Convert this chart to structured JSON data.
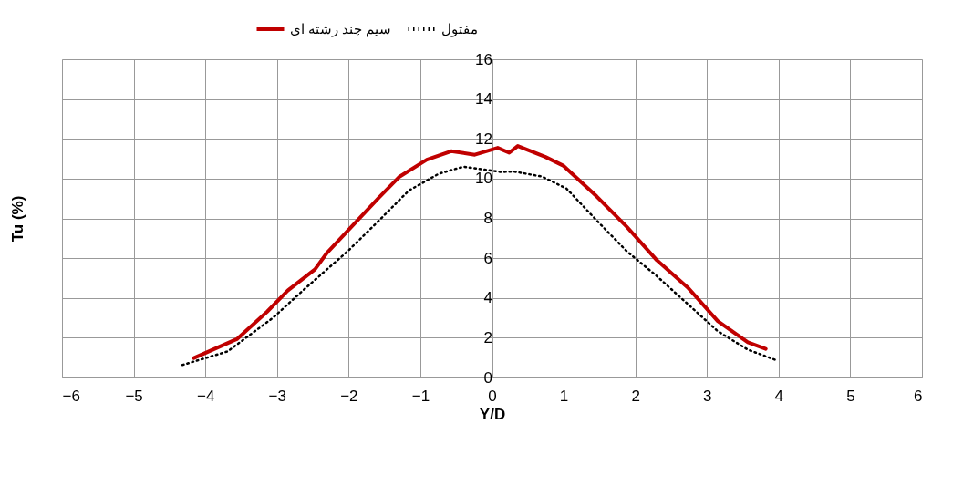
{
  "chart_data": {
    "type": "line",
    "xlabel": "Y/D",
    "ylabel": "Tu (%)",
    "xlim": [
      -6,
      6
    ],
    "xticks": [
      -6,
      -5,
      -4,
      -3,
      -2,
      -1,
      0,
      1,
      2,
      3,
      4,
      5,
      6
    ],
    "ylim": [
      0,
      16
    ],
    "yticks": [
      0,
      2,
      4,
      6,
      8,
      10,
      12,
      14,
      16
    ],
    "grid": true,
    "legend": "top",
    "marker": "none",
    "series": [
      {
        "name": "سیم چند رشته ای",
        "color": "#c00000",
        "line_style": "solid",
        "x": [
          -4.16,
          -3.56,
          -3.14,
          -2.85,
          -2.47,
          -2.3,
          -1.96,
          -1.58,
          -1.29,
          -0.91,
          -0.57,
          -0.24,
          0.08,
          0.24,
          0.36,
          0.74,
          1.0,
          1.46,
          1.88,
          2.3,
          2.73,
          3.15,
          3.57,
          3.82
        ],
        "values": [
          0.98,
          1.93,
          3.3,
          4.37,
          5.44,
          6.28,
          7.58,
          9.04,
          10.1,
          10.95,
          11.38,
          11.2,
          11.55,
          11.3,
          11.64,
          11.1,
          10.64,
          9.11,
          7.58,
          5.9,
          4.53,
          2.84,
          1.77,
          1.44
        ]
      },
      {
        "name": "مفتول",
        "color": "#000000",
        "line_style": "dotted",
        "x": [
          -4.32,
          -3.69,
          -3.06,
          -2.64,
          -2.01,
          -1.58,
          -1.16,
          -0.74,
          -0.4,
          0.11,
          0.32,
          0.7,
          1.04,
          1.46,
          1.88,
          2.3,
          2.73,
          3.15,
          3.57,
          3.99
        ],
        "values": [
          0.63,
          1.31,
          2.99,
          4.37,
          6.36,
          7.88,
          9.4,
          10.25,
          10.6,
          10.34,
          10.35,
          10.1,
          9.5,
          7.9,
          6.35,
          5.1,
          3.7,
          2.33,
          1.4,
          0.84
        ]
      }
    ]
  }
}
